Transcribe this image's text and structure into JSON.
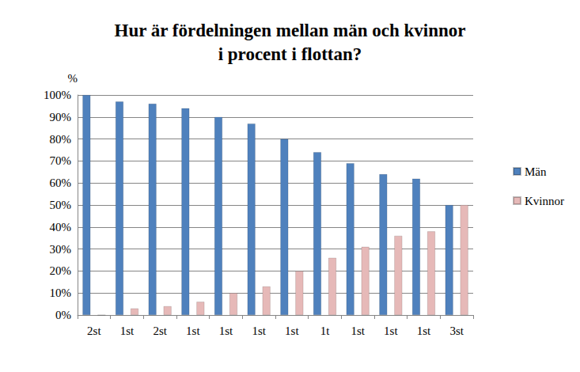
{
  "chart_data": {
    "type": "bar",
    "title": "Hur är fördelningen mellan män och kvinnor\ni procent i flottan?",
    "y_label": "%",
    "categories": [
      "2st",
      "1st",
      "2st",
      "1st",
      "1st",
      "1st",
      "1st",
      "1t",
      "1st",
      "1st",
      "1st",
      "3st"
    ],
    "series": [
      {
        "name": "Män",
        "color": "#4f81bd",
        "values": [
          100,
          97,
          96,
          94,
          90,
          87,
          80,
          74,
          69,
          64,
          62,
          50
        ]
      },
      {
        "name": "Kvinnor",
        "color": "#e6b9b8",
        "values": [
          0,
          3,
          4,
          6,
          10,
          13,
          20,
          26,
          31,
          36,
          38,
          50
        ]
      }
    ],
    "ylim": [
      0,
      100
    ],
    "yticks": [
      {
        "value": 0,
        "label": "0%"
      },
      {
        "value": 10,
        "label": "10%"
      },
      {
        "value": 20,
        "label": "20%"
      },
      {
        "value": 30,
        "label": "30%"
      },
      {
        "value": 40,
        "label": "40%"
      },
      {
        "value": 50,
        "label": "50%"
      },
      {
        "value": 60,
        "label": "60%"
      },
      {
        "value": 70,
        "label": "70%"
      },
      {
        "value": 80,
        "label": "80%"
      },
      {
        "value": 90,
        "label": "90%"
      },
      {
        "value": 100,
        "label": "100%"
      }
    ],
    "grid": true,
    "legend": "right"
  }
}
